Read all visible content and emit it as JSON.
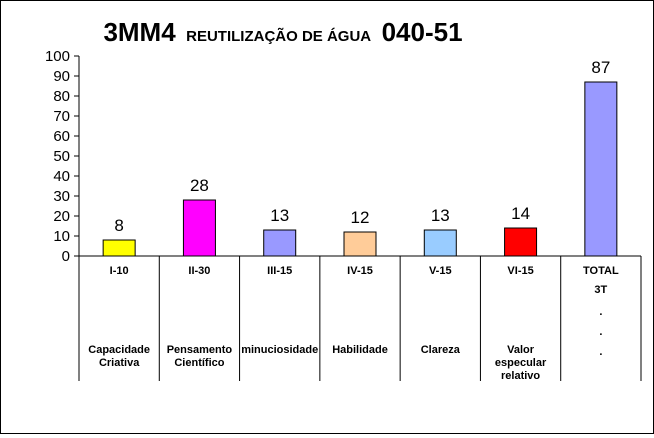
{
  "chart_data": {
    "type": "bar",
    "title": {
      "prefix": "3MM4",
      "middle": "REUTILIZAÇÃO DE ÁGUA",
      "suffix": "040-51"
    },
    "categories": [
      "I-10",
      "II-30",
      "III-15",
      "IV-15",
      "V-15",
      "VI-15",
      "TOTAL"
    ],
    "values": [
      8,
      28,
      13,
      12,
      13,
      14,
      87
    ],
    "colors": [
      "#ffff00",
      "#ff00ff",
      "#9999ff",
      "#ffcc99",
      "#99ccff",
      "#ff0000",
      "#9999ff"
    ],
    "descriptions": [
      [
        "Capacidade",
        "Criativa"
      ],
      [
        "Pensamento",
        "Científico"
      ],
      [
        "minuciosidade"
      ],
      [
        "Habilidade"
      ],
      [
        "Clareza"
      ],
      [
        "Valor",
        "especular",
        "relativo"
      ],
      []
    ],
    "total_extra": [
      "3T",
      ".",
      ".",
      "."
    ],
    "ylim": [
      0,
      100
    ],
    "yticks": [
      0,
      10,
      20,
      30,
      40,
      50,
      60,
      70,
      80,
      90,
      100
    ],
    "grid": false,
    "legend": "none"
  }
}
